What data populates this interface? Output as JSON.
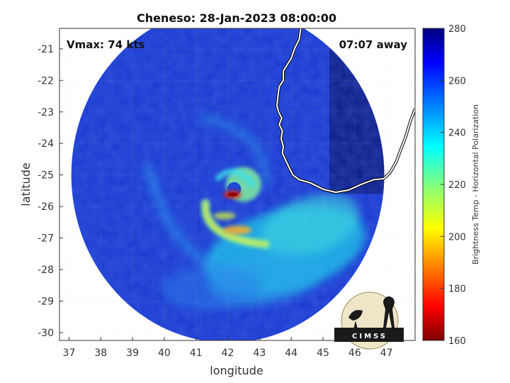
{
  "title": "Cheneso: 28-Jan-2023 08:00:00",
  "annotations": {
    "vmax": "Vmax: 74 kts",
    "time_away": "07:07 away"
  },
  "axes": {
    "xlabel": "longitude",
    "ylabel": "latitude",
    "xlim": [
      36.7,
      47.9
    ],
    "ylim": [
      -30.25,
      -20.35
    ],
    "xticks": [
      37,
      38,
      39,
      40,
      41,
      42,
      43,
      44,
      45,
      46,
      47
    ],
    "yticks": [
      -21,
      -22,
      -23,
      -24,
      -25,
      -26,
      -27,
      -28,
      -29,
      -30
    ],
    "grid": true
  },
  "colorbar": {
    "label": "Brightness Temp - Horizontal Polarization",
    "min": 160,
    "max": 280,
    "ticks": [
      160,
      180,
      200,
      220,
      240,
      260,
      280
    ],
    "colormap": "jet"
  },
  "logo": {
    "text": "CIMSS"
  },
  "colors": {
    "background_deep": "#1a33c7",
    "far_field": "#0d1f8a",
    "coast": "#ffffff"
  },
  "chart_data": {
    "type": "heatmap",
    "storm": "Cheneso",
    "datetime": "28-Jan-2023 08:00:00",
    "vmax_kts": 74,
    "center": {
      "lon": 42.1,
      "lat": -25.6
    },
    "swath_center": {
      "lon": 42.0,
      "lat": -25.0
    },
    "swath_radius_deg": 5.6,
    "value_range": [
      160,
      280
    ]
  }
}
